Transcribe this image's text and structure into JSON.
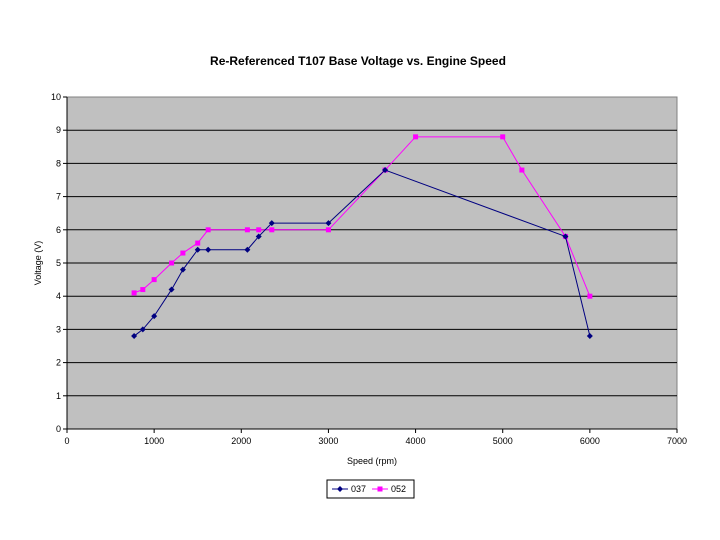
{
  "chart_data": {
    "type": "line",
    "title": "Re-Referenced T107 Base Voltage vs. Engine Speed",
    "xlabel": "Speed (rpm)",
    "ylabel": "Voltage (V)",
    "xlim": [
      0,
      7000
    ],
    "ylim": [
      0,
      10
    ],
    "xticks": [
      "0",
      "1000",
      "2000",
      "3000",
      "4000",
      "5000",
      "6000",
      "7000"
    ],
    "yticks": [
      "0",
      "1",
      "2",
      "3",
      "4",
      "5",
      "6",
      "7",
      "8",
      "9",
      "10"
    ],
    "grid": "horizontal",
    "legend_position": "bottom",
    "plot_background": "#c0c0c0",
    "series": [
      {
        "name": "037",
        "color": "#000080",
        "marker": "diamond",
        "x": [
          770,
          870,
          1000,
          1200,
          1330,
          1500,
          1620,
          2070,
          2200,
          2350,
          3000,
          3650,
          5720,
          6000
        ],
        "y": [
          2.8,
          3.0,
          3.4,
          4.2,
          4.8,
          5.4,
          5.4,
          5.4,
          5.8,
          6.2,
          6.2,
          7.8,
          5.8,
          2.8
        ]
      },
      {
        "name": "052",
        "color": "#ff00ff",
        "marker": "square",
        "x": [
          770,
          870,
          1000,
          1200,
          1330,
          1500,
          1620,
          2070,
          2200,
          2350,
          3000,
          3650,
          4000,
          5000,
          5220,
          5720,
          6000
        ],
        "y": [
          4.1,
          4.2,
          4.5,
          5.0,
          5.3,
          5.6,
          6.0,
          6.0,
          6.0,
          6.0,
          6.0,
          7.8,
          8.8,
          8.8,
          7.8,
          5.8,
          4.0
        ]
      }
    ]
  }
}
